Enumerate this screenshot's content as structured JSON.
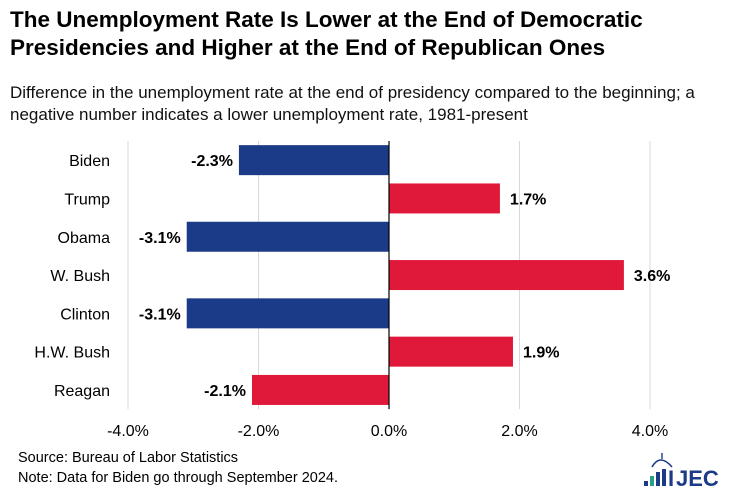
{
  "title": "The Unemployment Rate Is Lower at the End of Democratic Presidencies and Higher at the End of Republican Ones",
  "subtitle": "Difference in the unemployment rate at the end of presidency compared to the beginning; a negative number indicates a lower unemployment rate, 1981-present",
  "source": "Source: Bureau of Labor Statistics",
  "note": "Note: Data for Biden go through September 2024.",
  "logo_text": "JEC",
  "colors": {
    "democratic": "#1B3A87",
    "republican": "#E0193A",
    "grid": "#D9D9D9",
    "axis": "#000000"
  },
  "chart_data": {
    "type": "bar",
    "orientation": "horizontal",
    "categories": [
      "Biden",
      "Trump",
      "Obama",
      "W. Bush",
      "Clinton",
      "H.W. Bush",
      "Reagan"
    ],
    "values": [
      -2.3,
      1.7,
      -3.1,
      3.6,
      -3.1,
      1.9,
      -2.1
    ],
    "data_labels": [
      "-2.3%",
      "1.7%",
      "-3.1%",
      "3.6%",
      "-3.1%",
      "1.9%",
      "-2.1%"
    ],
    "party": [
      "democratic",
      "republican",
      "democratic",
      "republican",
      "democratic",
      "republican",
      "republican"
    ],
    "xlim": [
      -4.0,
      4.0
    ],
    "xticks": [
      -4.0,
      -2.0,
      0.0,
      2.0,
      4.0
    ],
    "xtick_labels": [
      "-4.0%",
      "-2.0%",
      "0.0%",
      "2.0%",
      "4.0%"
    ],
    "grid": true,
    "legend": "none"
  }
}
